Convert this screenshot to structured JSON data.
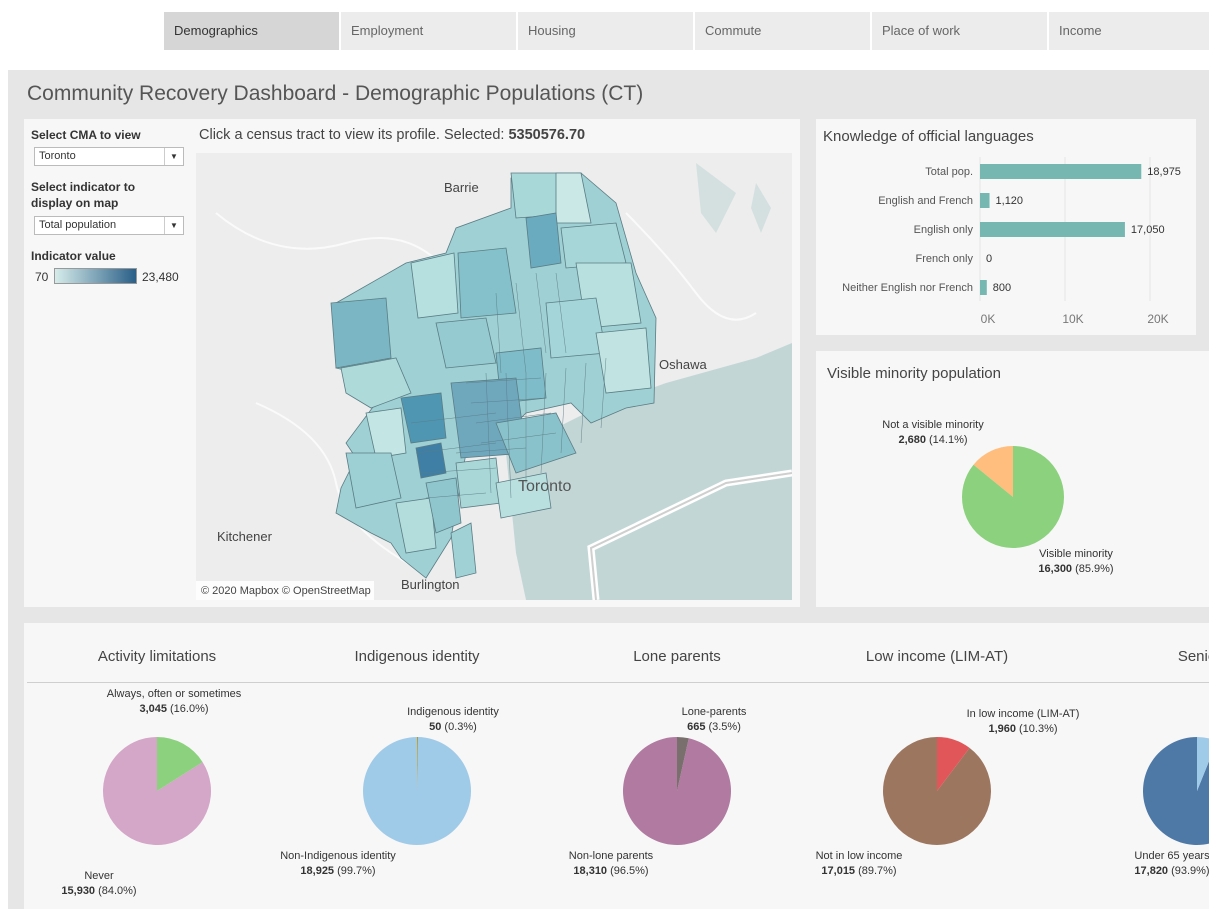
{
  "tabs": [
    "Demographics",
    "Employment",
    "Housing",
    "Commute",
    "Place of work",
    "Income"
  ],
  "active_tab": "Demographics",
  "dashboard_title": "Community Recovery Dashboard - Demographic Populations (CT)",
  "controls": {
    "cma_label": "Select CMA to view",
    "cma_value": "Toronto",
    "indicator_label": "Select indicator to display on map",
    "indicator_value": "Total population",
    "legend_label": "Indicator value",
    "legend_min": "70",
    "legend_max": "23,480",
    "legend_colors": [
      "#d6ecea",
      "#2a5f88"
    ]
  },
  "map": {
    "header_prefix": "Click a census tract to view its profile. Selected: ",
    "selected": "5350576.70",
    "places": [
      "Barrie",
      "Oshawa",
      "Kitchener",
      "Burlington",
      "Toronto"
    ],
    "attribution": "© 2020 Mapbox © OpenStreetMap"
  },
  "languages": {
    "title": "Knowledge of official languages",
    "bars": [
      {
        "label": "Total pop.",
        "value": 18975,
        "text": "18,975"
      },
      {
        "label": "English and French",
        "value": 1120,
        "text": "1,120"
      },
      {
        "label": "English only",
        "value": 17050,
        "text": "17,050"
      },
      {
        "label": "French only",
        "value": 0,
        "text": "0"
      },
      {
        "label": "Neither English nor French",
        "value": 800,
        "text": "800"
      }
    ],
    "axis_ticks": [
      "0K",
      "10K",
      "20K"
    ],
    "color": "#76b7b2"
  },
  "visible_minority": {
    "title": "Visible minority population",
    "slices": [
      {
        "label": "Not a visible minority",
        "value": "2,680",
        "pct": "(14.1%)",
        "fraction": 0.141,
        "color": "#ffbe7d"
      },
      {
        "label": "Visible minority",
        "value": "16,300",
        "pct": "(85.9%)",
        "fraction": 0.859,
        "color": "#8cd17d"
      }
    ]
  },
  "small_pies": [
    {
      "title": "Activity limitations",
      "minor": {
        "label": "Always, often or sometimes",
        "value": "3,045",
        "pct": "(16.0%)",
        "fraction": 0.16,
        "color": "#8cd17d"
      },
      "major": {
        "label": "Never",
        "value": "15,930",
        "pct": "(84.0%)",
        "color": "#d4a6c8"
      }
    },
    {
      "title": "Indigenous identity",
      "minor": {
        "label": "Indigenous identity",
        "value": "50",
        "pct": "(0.3%)",
        "fraction": 0.003,
        "color": "#b6992d"
      },
      "major": {
        "label": "Non-Indigenous identity",
        "value": "18,925",
        "pct": "(99.7%)",
        "color": "#a0cbe8"
      }
    },
    {
      "title": "Lone parents",
      "minor": {
        "label": "Lone-parents",
        "value": "665",
        "pct": "(3.5%)",
        "fraction": 0.035,
        "color": "#79706e"
      },
      "major": {
        "label": "Non-lone parents",
        "value": "18,310",
        "pct": "(96.5%)",
        "color": "#b07aa1"
      }
    },
    {
      "title": "Low income (LIM-AT)",
      "minor": {
        "label": "In low income (LIM-AT)",
        "value": "1,960",
        "pct": "(10.3%)",
        "fraction": 0.103,
        "color": "#e15759"
      },
      "major": {
        "label": "Not in low income",
        "value": "17,015",
        "pct": "(89.7%)",
        "color": "#9d7660"
      }
    },
    {
      "title": "Senio",
      "minor": {
        "label": "",
        "value": "",
        "pct": "",
        "fraction": 0.061,
        "color": "#a0cbe8"
      },
      "major": {
        "label": "Under 65 years",
        "value": "17,820",
        "pct": "(93.9%)",
        "color": "#4e79a7"
      }
    }
  ]
}
